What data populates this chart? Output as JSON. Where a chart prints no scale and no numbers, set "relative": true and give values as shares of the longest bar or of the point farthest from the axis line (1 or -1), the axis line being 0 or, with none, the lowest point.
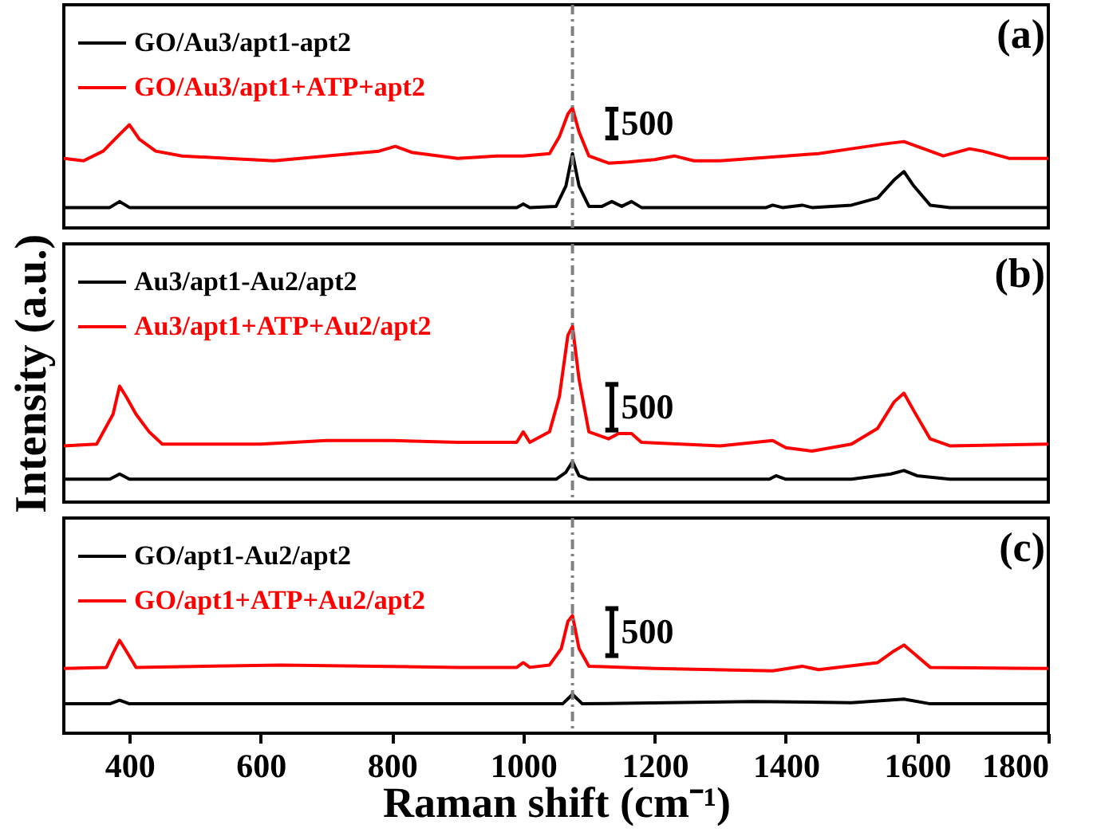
{
  "chart_data": [
    {
      "type": "line",
      "relative": true,
      "xlim": [
        300,
        1800
      ],
      "xticks": [
        400,
        600,
        800,
        1000,
        1200,
        1400,
        1600,
        1800
      ],
      "tick_labels": false,
      "legend": "top left",
      "annotations": [
        "(a)",
        "500"
      ],
      "ref_lines": [
        {
          "axis": "x",
          "value": 1075,
          "color": "#808080",
          "line_style": "dashed"
        }
      ],
      "series": [
        {
          "name": "GO/Au3/apt1-apt2",
          "color": "#000000",
          "x": [
            300,
            370,
            385,
            400,
            990,
            1000,
            1010,
            1050,
            1065,
            1075,
            1085,
            1100,
            1120,
            1135,
            1150,
            1165,
            1180,
            1370,
            1380,
            1395,
            1425,
            1440,
            1500,
            1540,
            1565,
            1580,
            1595,
            1620,
            1650,
            1800
          ],
          "values": [
            0.17,
            0.17,
            0.22,
            0.17,
            0.17,
            0.2,
            0.17,
            0.18,
            0.35,
            0.62,
            0.35,
            0.18,
            0.18,
            0.22,
            0.18,
            0.22,
            0.17,
            0.17,
            0.19,
            0.17,
            0.19,
            0.17,
            0.19,
            0.25,
            0.4,
            0.47,
            0.35,
            0.19,
            0.17,
            0.17
          ]
        },
        {
          "name": "GO/Au3/apt1+ATP+apt2",
          "color": "#ff0000",
          "x": [
            300,
            330,
            360,
            385,
            400,
            415,
            440,
            480,
            550,
            620,
            700,
            780,
            805,
            830,
            900,
            960,
            1000,
            1040,
            1055,
            1068,
            1075,
            1085,
            1100,
            1130,
            1160,
            1200,
            1230,
            1260,
            1300,
            1350,
            1400,
            1450,
            1500,
            1550,
            1580,
            1600,
            1640,
            1680,
            1700,
            1740,
            1800
          ],
          "values": [
            0.58,
            0.56,
            0.64,
            0.78,
            0.86,
            0.74,
            0.64,
            0.6,
            0.58,
            0.56,
            0.6,
            0.64,
            0.68,
            0.63,
            0.58,
            0.6,
            0.6,
            0.62,
            0.76,
            0.95,
            1.0,
            0.8,
            0.6,
            0.54,
            0.55,
            0.57,
            0.6,
            0.56,
            0.56,
            0.58,
            0.6,
            0.62,
            0.66,
            0.7,
            0.72,
            0.68,
            0.6,
            0.66,
            0.64,
            0.58,
            0.58
          ]
        }
      ]
    },
    {
      "type": "line",
      "relative": true,
      "xlim": [
        300,
        1800
      ],
      "xticks": [
        400,
        600,
        800,
        1000,
        1200,
        1400,
        1600,
        1800
      ],
      "tick_labels": false,
      "legend": "top left",
      "ylabel": "Intensity (a.u.)",
      "annotations": [
        "(b)",
        "500"
      ],
      "ref_lines": [
        {
          "axis": "x",
          "value": 1075,
          "color": "#808080",
          "line_style": "dashed"
        }
      ],
      "series": [
        {
          "name": "Au3/apt1-Au2/apt2",
          "color": "#000000",
          "x": [
            300,
            370,
            385,
            400,
            1050,
            1065,
            1075,
            1085,
            1100,
            1375,
            1385,
            1400,
            1500,
            1560,
            1580,
            1600,
            1650,
            1800
          ],
          "values": [
            0.13,
            0.13,
            0.16,
            0.13,
            0.13,
            0.17,
            0.23,
            0.15,
            0.13,
            0.13,
            0.15,
            0.13,
            0.13,
            0.16,
            0.18,
            0.15,
            0.13,
            0.13
          ]
        },
        {
          "name": "Au3/apt1+ATP+Au2/apt2",
          "color": "#ff0000",
          "x": [
            300,
            350,
            375,
            385,
            395,
            410,
            430,
            450,
            600,
            700,
            800,
            900,
            990,
            1000,
            1010,
            1040,
            1055,
            1068,
            1075,
            1085,
            1100,
            1130,
            1145,
            1165,
            1180,
            1300,
            1380,
            1400,
            1440,
            1500,
            1540,
            1565,
            1580,
            1595,
            1620,
            1650,
            1800
          ],
          "values": [
            0.32,
            0.33,
            0.5,
            0.66,
            0.6,
            0.5,
            0.4,
            0.33,
            0.33,
            0.35,
            0.35,
            0.34,
            0.34,
            0.4,
            0.34,
            0.4,
            0.6,
            0.95,
            1.0,
            0.7,
            0.4,
            0.36,
            0.39,
            0.39,
            0.34,
            0.32,
            0.35,
            0.31,
            0.29,
            0.33,
            0.42,
            0.57,
            0.62,
            0.52,
            0.36,
            0.32,
            0.33
          ]
        }
      ]
    },
    {
      "type": "line",
      "relative": true,
      "xlim": [
        300,
        1800
      ],
      "xticks": [
        400,
        600,
        800,
        1000,
        1200,
        1400,
        1600,
        1800
      ],
      "tick_labels": "x",
      "legend": "top left",
      "xlabel": "Raman shift (cm⁻¹)",
      "annotations": [
        "(c)",
        "500"
      ],
      "ref_lines": [
        {
          "axis": "x",
          "value": 1075,
          "color": "#808080",
          "line_style": "dashed"
        }
      ],
      "series": [
        {
          "name": "GO/apt1-Au2/apt2",
          "color": "#000000",
          "x": [
            300,
            370,
            385,
            400,
            1060,
            1075,
            1090,
            1350,
            1500,
            1580,
            1620,
            1800
          ],
          "values": [
            0.25,
            0.25,
            0.28,
            0.25,
            0.25,
            0.33,
            0.25,
            0.27,
            0.26,
            0.29,
            0.25,
            0.25
          ]
        },
        {
          "name": "GO/apt1+ATP+Au2/apt2",
          "color": "#ff0000",
          "x": [
            300,
            365,
            375,
            385,
            395,
            410,
            630,
            900,
            990,
            1000,
            1010,
            1040,
            1058,
            1068,
            1075,
            1085,
            1100,
            1200,
            1380,
            1425,
            1450,
            1540,
            1565,
            1580,
            1595,
            1620,
            1800
          ],
          "values": [
            0.55,
            0.56,
            0.68,
            0.79,
            0.7,
            0.56,
            0.58,
            0.56,
            0.56,
            0.6,
            0.56,
            0.58,
            0.72,
            0.95,
            1.0,
            0.72,
            0.57,
            0.55,
            0.53,
            0.57,
            0.54,
            0.6,
            0.7,
            0.75,
            0.68,
            0.56,
            0.55
          ]
        }
      ]
    }
  ]
}
